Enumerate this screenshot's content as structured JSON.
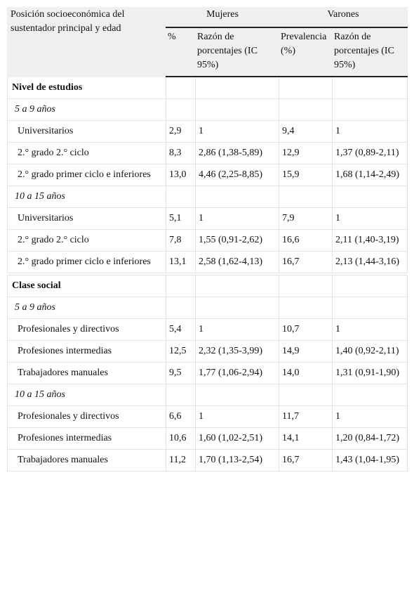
{
  "table": {
    "header": {
      "row_label": "Posición socioeconómica del sustentador principal y edad",
      "groups": [
        "Mujeres",
        "Varones"
      ],
      "columns": [
        "%",
        "Razón de porcentajes (IC 95%)",
        "Prevalencia (%)",
        "Razón de porcentajes (IC 95%)"
      ]
    },
    "sections": [
      {
        "title": "Nivel de estudios",
        "groups": [
          {
            "label": "5 a 9 años",
            "rows": [
              [
                "Universitarios",
                "2,9",
                "1",
                "9,4",
                "1"
              ],
              [
                "2.° grado 2.° ciclo",
                "8,3",
                "2,86 (1,38-5,89)",
                "12,9",
                "1,37 (0,89-2,11)"
              ],
              [
                "2.° grado primer ciclo e inferiores",
                "13,0",
                "4,46 (2,25-8,85)",
                "15,9",
                "1,68 (1,14-2,49)"
              ]
            ]
          },
          {
            "label": "10 a 15 años",
            "rows": [
              [
                "Universitarios",
                "5,1",
                "1",
                "7,9",
                "1"
              ],
              [
                "2.° grado 2.° ciclo",
                "7,8",
                "1,55 (0,91-2,62)",
                "16,6",
                "2,11 (1,40-3,19)"
              ],
              [
                "2.° grado primer ciclo e inferiores",
                "13,1",
                "2,58 (1,62-4,13)",
                "16,7",
                "2,13 (1,44-3,16)"
              ]
            ]
          }
        ]
      },
      {
        "title": "Clase social",
        "groups": [
          {
            "label": "5 a 9 años",
            "rows": [
              [
                "Profesionales y directivos",
                "5,4",
                "1",
                "10,7",
                "1"
              ],
              [
                "Profesiones intermedias",
                "12,5",
                "2,32 (1,35-3,99)",
                "14,9",
                "1,40 (0,92-2,11)"
              ],
              [
                "Trabajadores manuales",
                "9,5",
                "1,77 (1,06-2,94)",
                "14,0",
                "1,31 (0,91-1,90)"
              ]
            ]
          },
          {
            "label": "10 a 15 años",
            "rows": [
              [
                "Profesionales y directivos",
                "6,6",
                "1",
                "11,7",
                "1"
              ],
              [
                "Profesiones intermedias",
                "10,6",
                "1,60 (1,02-2,51)",
                "14,1",
                "1,20 (0,84-1,72)"
              ],
              [
                "Trabajadores manuales",
                "11,2",
                "1,70 (1,13-2,54)",
                "16,7",
                "1,43 (1,04-1,95)"
              ]
            ]
          }
        ]
      }
    ]
  }
}
